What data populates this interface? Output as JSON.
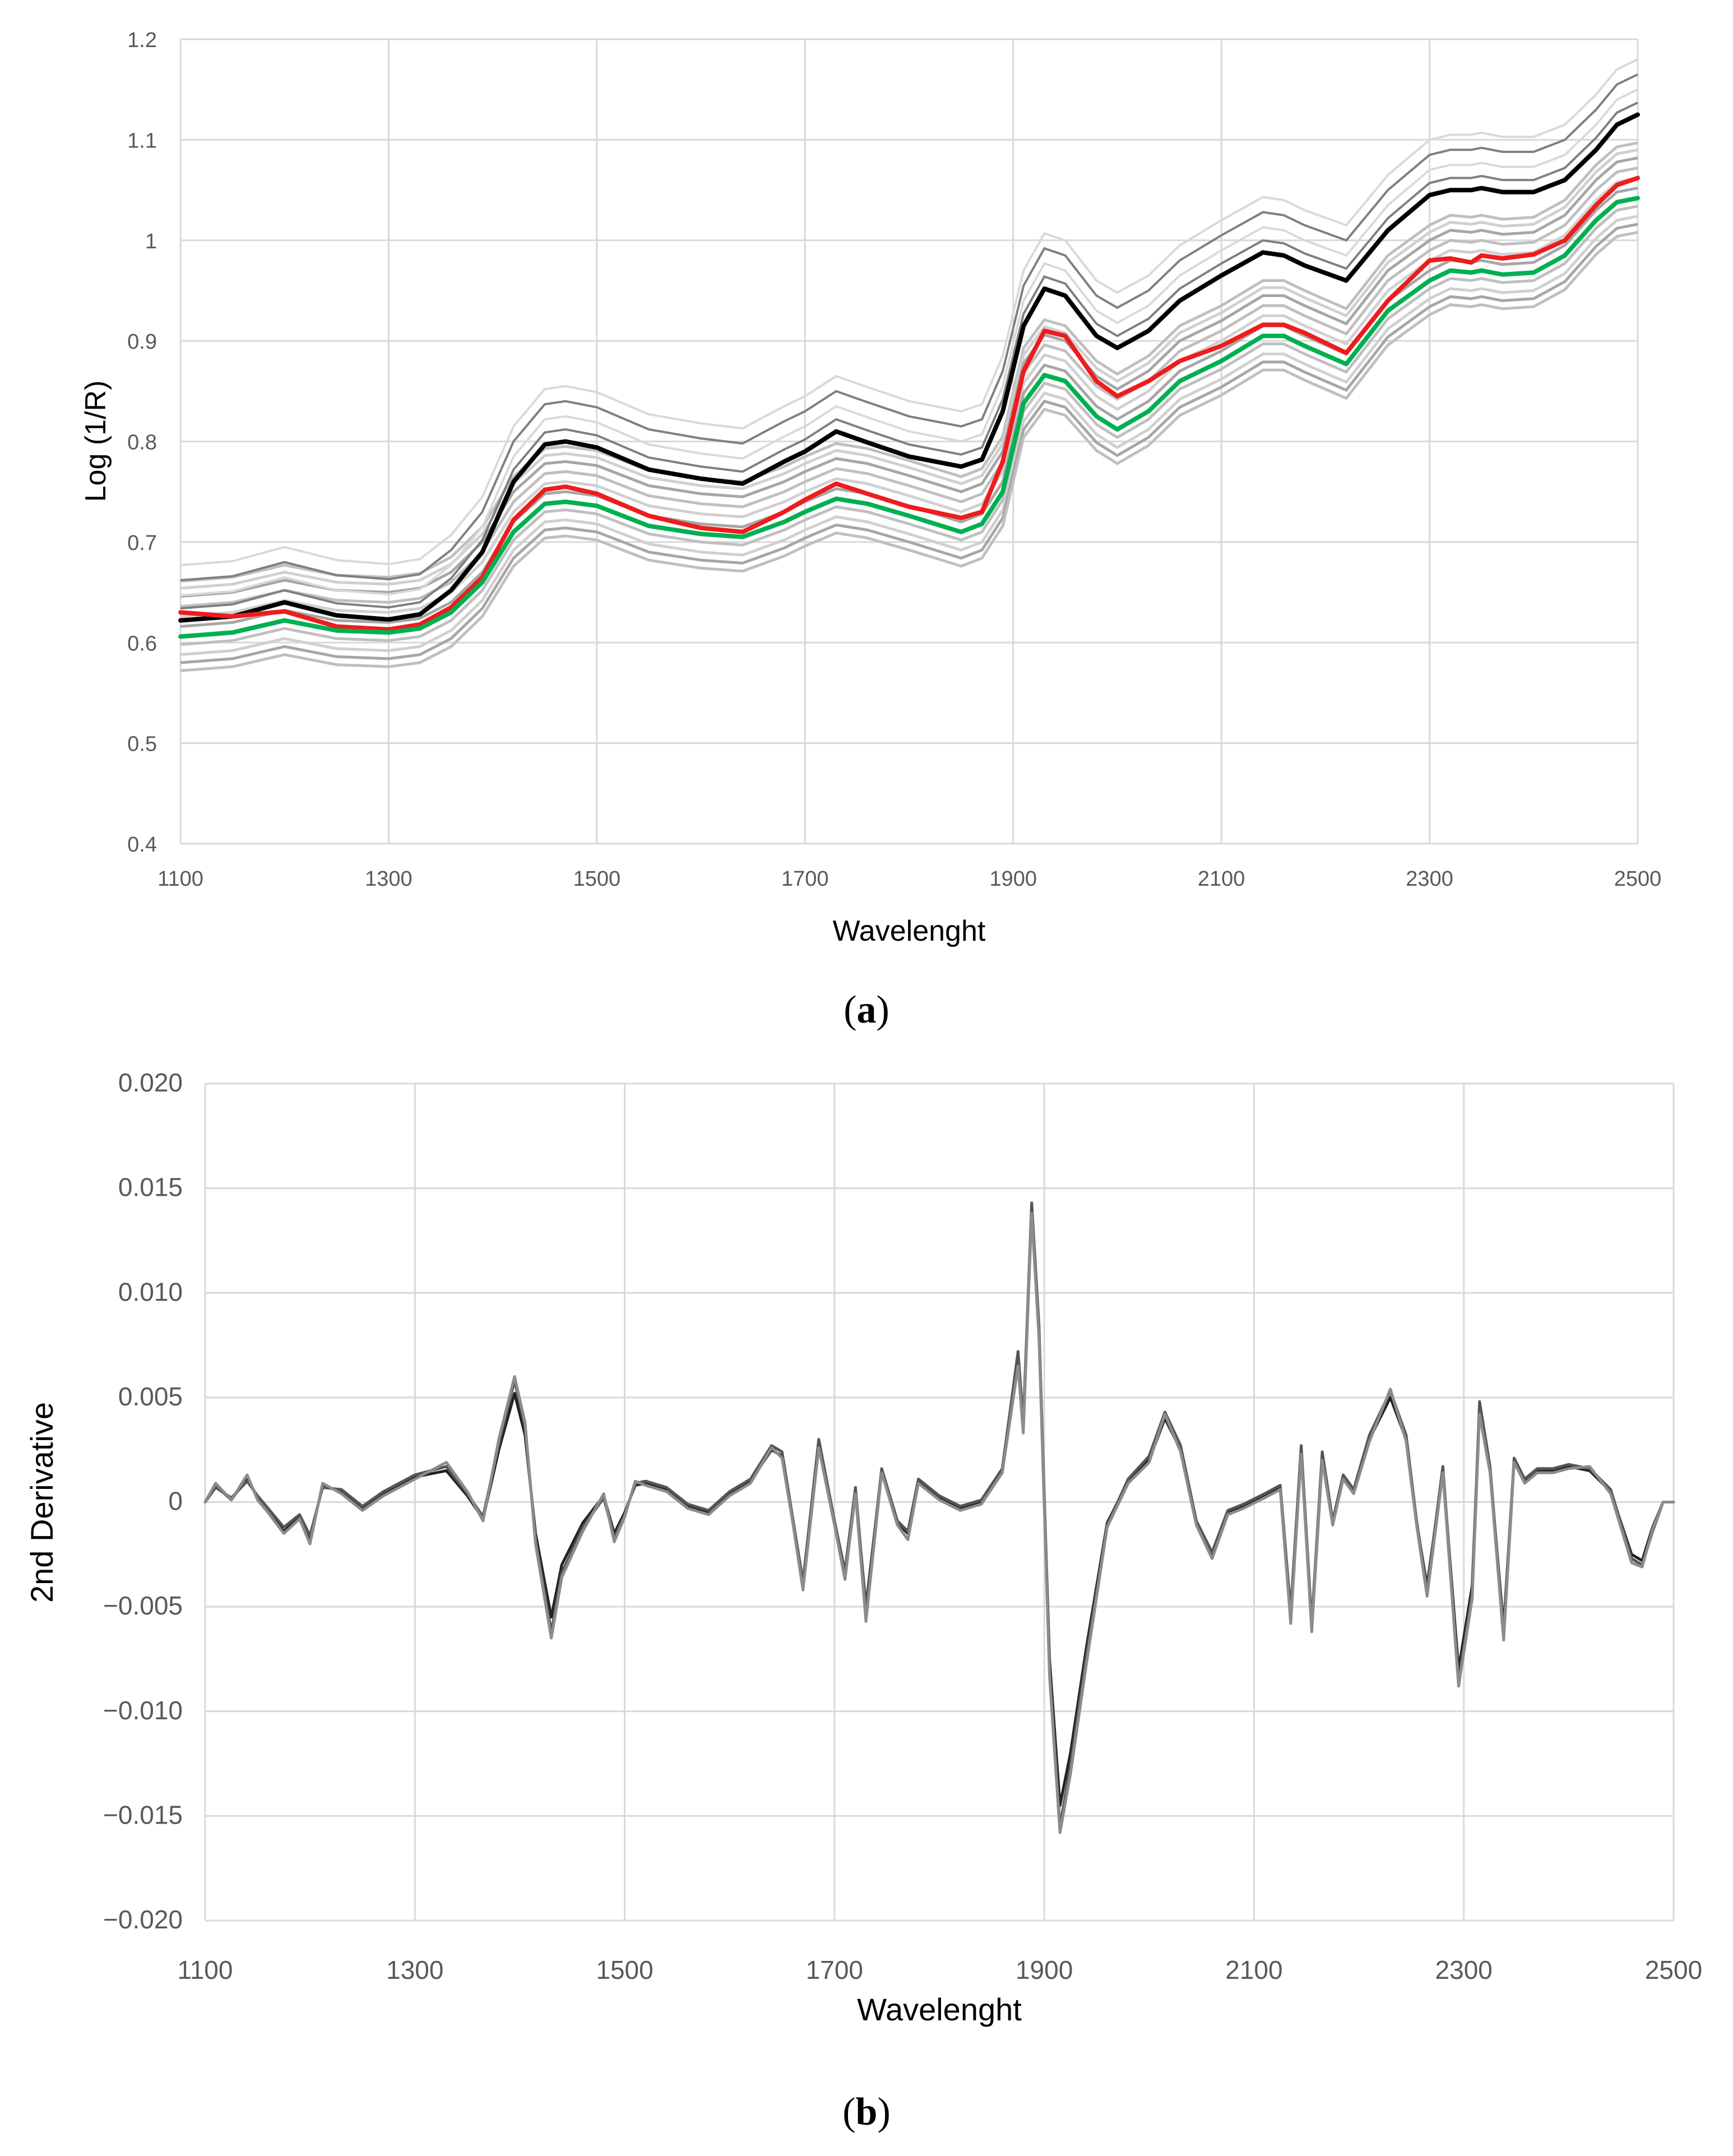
{
  "chart_data": [
    {
      "panel": "a",
      "type": "line",
      "caption_open": "(",
      "caption_letter": "a",
      "caption_close": ")",
      "xlabel": "Wavelenght",
      "ylabel": "Log (1/R)",
      "xlim": [
        1100,
        2500
      ],
      "ylim": [
        0.4,
        1.2
      ],
      "xticks": [
        1100,
        1300,
        1500,
        1700,
        1900,
        2100,
        2300,
        2500
      ],
      "yticks": [
        0.4,
        0.5,
        0.6,
        0.7,
        0.8,
        0.9,
        1,
        1.1,
        1.2
      ],
      "ytick_labels": [
        "0.4",
        "0.5",
        "0.6",
        "0.7",
        "0.8",
        "0.9",
        "1",
        "1.1",
        "1.2"
      ],
      "grid": true,
      "x": [
        1100,
        1150,
        1200,
        1250,
        1300,
        1330,
        1360,
        1390,
        1420,
        1450,
        1470,
        1500,
        1550,
        1600,
        1640,
        1680,
        1700,
        1730,
        1760,
        1800,
        1850,
        1870,
        1890,
        1910,
        1930,
        1950,
        1980,
        2000,
        2030,
        2060,
        2100,
        2140,
        2160,
        2180,
        2220,
        2260,
        2300,
        2320,
        2340,
        2350,
        2370,
        2400,
        2430,
        2460,
        2480,
        2500
      ],
      "series": [
        {
          "name": "spectrum-black",
          "color": "#000000",
          "values": [
            0.622,
            0.626,
            0.64,
            0.627,
            0.623,
            0.628,
            0.652,
            0.69,
            0.76,
            0.797,
            0.8,
            0.794,
            0.772,
            0.763,
            0.758,
            0.78,
            0.79,
            0.81,
            0.799,
            0.785,
            0.775,
            0.782,
            0.83,
            0.915,
            0.952,
            0.945,
            0.905,
            0.893,
            0.91,
            0.94,
            0.965,
            0.988,
            0.985,
            0.975,
            0.96,
            1.01,
            1.045,
            1.05,
            1.05,
            1.052,
            1.048,
            1.048,
            1.06,
            1.09,
            1.115,
            1.125
          ]
        },
        {
          "name": "spectrum-red",
          "color": "#ee1c1c",
          "values": [
            0.63,
            0.626,
            0.631,
            0.616,
            0.613,
            0.618,
            0.635,
            0.665,
            0.722,
            0.752,
            0.755,
            0.748,
            0.726,
            0.714,
            0.71,
            0.73,
            0.742,
            0.758,
            0.748,
            0.735,
            0.724,
            0.73,
            0.78,
            0.87,
            0.91,
            0.905,
            0.86,
            0.845,
            0.86,
            0.88,
            0.895,
            0.916,
            0.916,
            0.908,
            0.888,
            0.94,
            0.98,
            0.982,
            0.978,
            0.985,
            0.982,
            0.986,
            1.0,
            1.035,
            1.055,
            1.062
          ]
        },
        {
          "name": "spectrum-green",
          "color": "#00b050",
          "values": [
            0.606,
            0.61,
            0.622,
            0.612,
            0.61,
            0.614,
            0.63,
            0.66,
            0.71,
            0.738,
            0.74,
            0.736,
            0.716,
            0.708,
            0.705,
            0.72,
            0.73,
            0.743,
            0.738,
            0.726,
            0.71,
            0.718,
            0.75,
            0.838,
            0.866,
            0.86,
            0.825,
            0.812,
            0.83,
            0.86,
            0.88,
            0.905,
            0.905,
            0.895,
            0.877,
            0.93,
            0.96,
            0.97,
            0.968,
            0.97,
            0.966,
            0.968,
            0.985,
            1.02,
            1.038,
            1.042
          ]
        }
      ]
    },
    {
      "panel": "b",
      "type": "line",
      "caption_open": "(",
      "caption_letter": "b",
      "caption_close": ")",
      "xlabel": "Wavelenght",
      "ylabel": "2nd Derivative",
      "xlim": [
        1100,
        2500
      ],
      "ylim": [
        -0.02,
        0.02
      ],
      "xticks": [
        1100,
        1300,
        1500,
        1700,
        1900,
        2100,
        2300,
        2500
      ],
      "yticks": [
        -0.02,
        -0.015,
        -0.01,
        -0.005,
        0,
        0.005,
        0.01,
        0.015,
        0.02
      ],
      "ytick_labels": [
        "−0.020",
        "−0.015",
        "−0.010",
        "−0.005",
        "0",
        "0.005",
        "0.010",
        "0.015",
        "0.020"
      ],
      "grid": true,
      "x": [
        1100,
        1110,
        1125,
        1140,
        1150,
        1160,
        1175,
        1190,
        1200,
        1212,
        1230,
        1250,
        1270,
        1300,
        1330,
        1350,
        1365,
        1380,
        1395,
        1405,
        1415,
        1430,
        1440,
        1460,
        1480,
        1490,
        1500,
        1510,
        1520,
        1540,
        1560,
        1580,
        1600,
        1620,
        1640,
        1650,
        1660,
        1670,
        1685,
        1700,
        1710,
        1720,
        1730,
        1745,
        1760,
        1770,
        1780,
        1800,
        1820,
        1840,
        1860,
        1870,
        1875,
        1880,
        1888,
        1895,
        1905,
        1915,
        1925,
        1940,
        1960,
        1980,
        2000,
        2015,
        2030,
        2045,
        2060,
        2075,
        2090,
        2110,
        2125,
        2135,
        2145,
        2155,
        2165,
        2175,
        2185,
        2195,
        2210,
        2230,
        2245,
        2255,
        2265,
        2280,
        2295,
        2308,
        2315,
        2325,
        2338,
        2348,
        2358,
        2370,
        2385,
        2400,
        2420,
        2440,
        2460,
        2470,
        2480,
        2490,
        2500
      ],
      "series": [
        {
          "name": "derivative-dark",
          "color": "#222222",
          "values": [
            0.0,
            0.0008,
            0.0001,
            0.0012,
            0.0002,
            -0.0004,
            -0.0014,
            -0.0007,
            -0.0018,
            0.0008,
            0.0005,
            -0.0003,
            0.0004,
            0.0012,
            0.0015,
            0.0003,
            -0.0008,
            0.0025,
            0.0052,
            0.0032,
            -0.0015,
            -0.0055,
            -0.003,
            -0.001,
            0.0003,
            -0.0015,
            -0.0005,
            0.0008,
            0.0009,
            0.0006,
            -0.0002,
            -0.0005,
            0.0004,
            0.001,
            0.0025,
            0.0022,
            -0.0008,
            -0.004,
            0.0028,
            -0.001,
            -0.0035,
            0.0005,
            -0.005,
            0.0015,
            -0.001,
            -0.0015,
            0.001,
            0.0002,
            -0.0003,
            0.0,
            0.0015,
            0.005,
            0.0068,
            0.0035,
            0.014,
            0.008,
            -0.0075,
            -0.0145,
            -0.012,
            -0.007,
            -0.001,
            0.001,
            0.002,
            0.004,
            0.0025,
            -0.001,
            -0.0025,
            -0.0005,
            -0.0002,
            0.0003,
            0.0007,
            -0.0055,
            0.0025,
            -0.006,
            0.0022,
            -0.001,
            0.0012,
            0.0005,
            0.003,
            0.005,
            0.003,
            -0.001,
            -0.004,
            0.0015,
            -0.008,
            -0.004,
            0.0045,
            0.0015,
            -0.006,
            0.002,
            0.001,
            0.0015,
            0.0015,
            0.0017,
            0.0015,
            0.0005,
            -0.0025,
            -0.0028,
            -0.0012,
            0.0,
            0.0
          ]
        },
        {
          "name": "derivative-mid",
          "color": "#555555",
          "values": [
            0.0,
            0.0007,
            0.0002,
            0.001,
            0.0003,
            -0.0003,
            -0.0012,
            -0.0006,
            -0.0016,
            0.0007,
            0.0006,
            -0.0002,
            0.0005,
            0.0013,
            0.0017,
            0.0004,
            -0.0007,
            0.0028,
            0.0058,
            0.0036,
            -0.0018,
            -0.0062,
            -0.0034,
            -0.0012,
            0.0002,
            -0.0017,
            -0.0006,
            0.0009,
            0.001,
            0.0007,
            -0.0001,
            -0.0004,
            0.0005,
            0.0011,
            0.0027,
            0.0024,
            -0.0007,
            -0.0038,
            0.003,
            -0.0009,
            -0.0033,
            0.0007,
            -0.0052,
            0.0016,
            -0.0009,
            -0.0014,
            0.0011,
            0.0003,
            -0.0002,
            0.0001,
            0.0016,
            0.0053,
            0.0072,
            0.0038,
            0.0143,
            0.0084,
            -0.008,
            -0.0155,
            -0.0126,
            -0.0074,
            -0.0011,
            0.0011,
            0.0022,
            0.0043,
            0.0027,
            -0.0009,
            -0.0024,
            -0.0004,
            -0.0001,
            0.0004,
            0.0008,
            -0.0052,
            0.0027,
            -0.0058,
            0.0024,
            -0.0009,
            0.0013,
            0.0006,
            0.0032,
            0.0053,
            0.0032,
            -0.0009,
            -0.0042,
            0.0017,
            -0.0085,
            -0.0044,
            0.0048,
            0.0017,
            -0.0063,
            0.0021,
            0.0011,
            0.0016,
            0.0016,
            0.0018,
            0.0016,
            0.0006,
            -0.0027,
            -0.003,
            -0.0014,
            0.0,
            0.0
          ]
        },
        {
          "name": "derivative-light",
          "color": "#8c8c8c",
          "values": [
            0.0,
            0.0009,
            0.0001,
            0.0013,
            0.0001,
            -0.0005,
            -0.0015,
            -0.0008,
            -0.002,
            0.0009,
            0.0004,
            -0.0004,
            0.0003,
            0.0011,
            0.0019,
            0.0005,
            -0.0009,
            0.003,
            0.006,
            0.0038,
            -0.002,
            -0.0065,
            -0.0036,
            -0.0014,
            0.0004,
            -0.0019,
            -0.0007,
            0.001,
            0.0008,
            0.0005,
            -0.0003,
            -0.0006,
            0.0003,
            0.0009,
            0.0026,
            0.0021,
            -0.0009,
            -0.0042,
            0.0026,
            -0.0011,
            -0.0037,
            0.0004,
            -0.0057,
            0.0014,
            -0.0011,
            -0.0018,
            0.0009,
            0.0001,
            -0.0004,
            -0.0001,
            0.0014,
            0.0048,
            0.0065,
            0.0033,
            0.0138,
            0.0078,
            -0.0083,
            -0.0158,
            -0.013,
            -0.0078,
            -0.0012,
            0.0009,
            0.0019,
            0.0042,
            0.0024,
            -0.0011,
            -0.0027,
            -0.0006,
            -0.0003,
            0.0002,
            0.0006,
            -0.0058,
            0.0023,
            -0.0062,
            0.002,
            -0.0011,
            0.0011,
            0.0004,
            0.0029,
            0.0054,
            0.0029,
            -0.0011,
            -0.0045,
            0.0014,
            -0.0088,
            -0.0046,
            0.0042,
            0.0014,
            -0.0066,
            0.0019,
            0.0009,
            0.0014,
            0.0014,
            0.0016,
            0.0017,
            0.0004,
            -0.0029,
            -0.0031,
            -0.0013,
            0.0,
            0.0
          ]
        }
      ]
    }
  ]
}
